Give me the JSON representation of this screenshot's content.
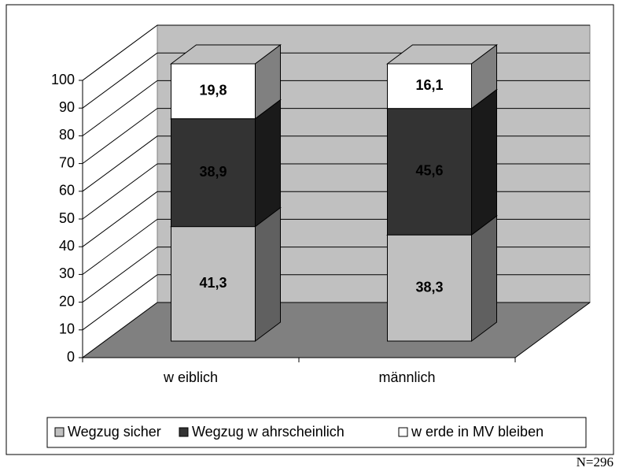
{
  "chart_data": {
    "type": "bar3d_stacked",
    "categories": [
      "w eiblich",
      "männlich"
    ],
    "series": [
      {
        "name": "Wegzug sicher",
        "color": "#c0c0c0",
        "values": [
          41.3,
          38.3
        ],
        "value_labels": [
          "41,3",
          "38,3"
        ]
      },
      {
        "name": "Wegzug w ahrscheinlich",
        "color": "#333333",
        "values": [
          38.9,
          45.6
        ],
        "value_labels": [
          "38,9",
          "45,6"
        ]
      },
      {
        "name": "w erde in MV bleiben",
        "color": "#ffffff",
        "values": [
          19.8,
          16.1
        ],
        "value_labels": [
          "19,8",
          "16,1"
        ]
      }
    ],
    "ylim": [
      0,
      100
    ],
    "yticks": [
      0,
      10,
      20,
      30,
      40,
      50,
      60,
      70,
      80,
      90,
      100
    ],
    "grid": true,
    "legend": "bottom",
    "annotation": "N=296"
  }
}
